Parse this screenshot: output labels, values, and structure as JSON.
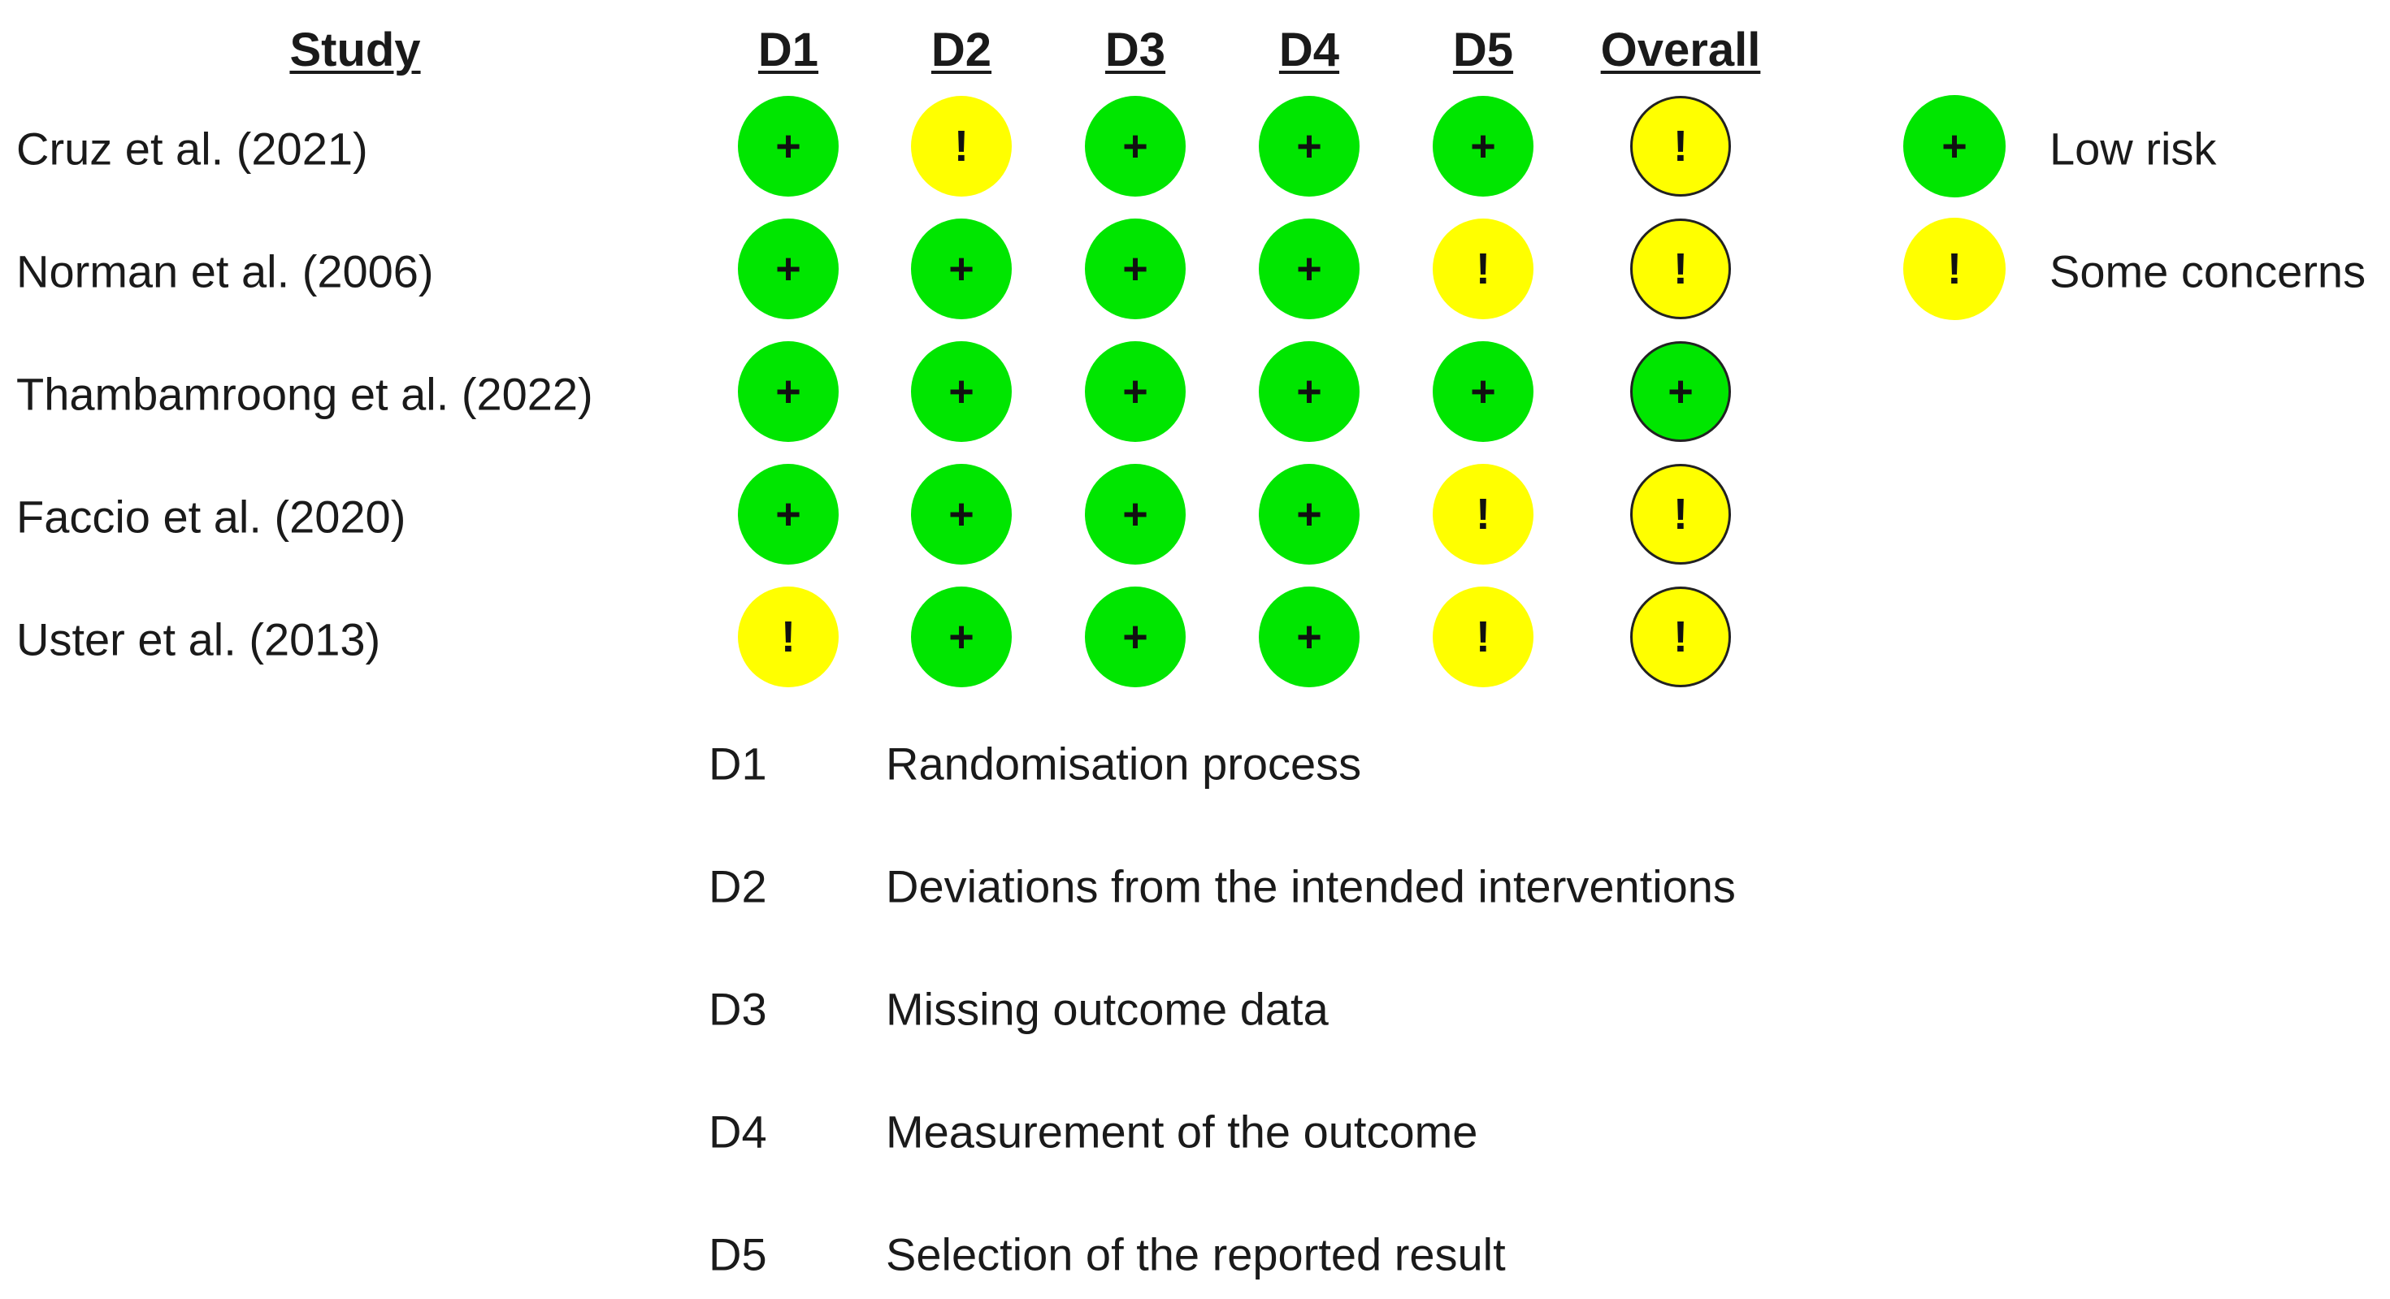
{
  "headers": {
    "study": "Study",
    "domains": [
      "D1",
      "D2",
      "D3",
      "D4",
      "D5"
    ],
    "overall": "Overall"
  },
  "studies": [
    {
      "name": "Cruz et al. (2021)",
      "judgements": [
        "low",
        "some",
        "low",
        "low",
        "low"
      ],
      "overall": "some"
    },
    {
      "name": "Norman et al. (2006)",
      "judgements": [
        "low",
        "low",
        "low",
        "low",
        "some"
      ],
      "overall": "some"
    },
    {
      "name": "Thambamroong et al. (2022)",
      "judgements": [
        "low",
        "low",
        "low",
        "low",
        "low"
      ],
      "overall": "low"
    },
    {
      "name": "Faccio et al. (2020)",
      "judgements": [
        "low",
        "low",
        "low",
        "low",
        "some"
      ],
      "overall": "some"
    },
    {
      "name": "Uster et al. (2013)",
      "judgements": [
        "some",
        "low",
        "low",
        "low",
        "some"
      ],
      "overall": "some"
    }
  ],
  "legend": [
    {
      "key": "low",
      "label": "Low risk"
    },
    {
      "key": "some",
      "label": "Some concerns"
    }
  ],
  "symbols": {
    "low": "+",
    "some": "!"
  },
  "colors": {
    "low": "#00e600",
    "some": "#ffff00"
  },
  "domain_definitions": [
    {
      "code": "D1",
      "label": "Randomisation process"
    },
    {
      "code": "D2",
      "label": "Deviations from the intended interventions"
    },
    {
      "code": "D3",
      "label": "Missing outcome data"
    },
    {
      "code": "D4",
      "label": "Measurement of the outcome"
    },
    {
      "code": "D5",
      "label": "Selection of the reported result"
    }
  ]
}
